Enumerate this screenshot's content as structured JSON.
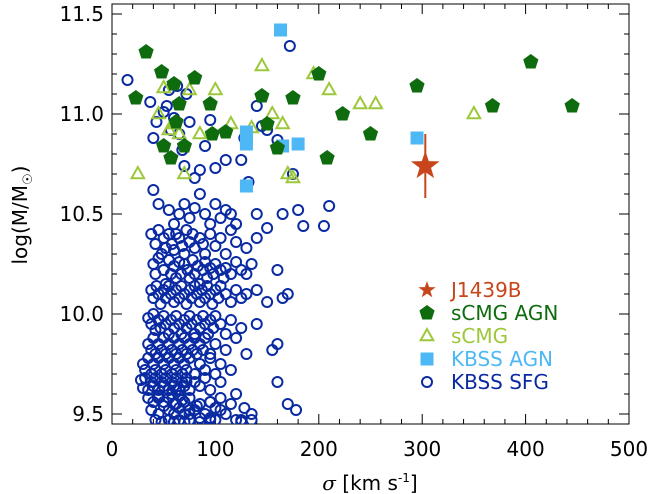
{
  "chart_data": {
    "type": "scatter",
    "xlabel": {
      "sym": "σ",
      "main": " [km s",
      "sup": "-1",
      "end": "]"
    },
    "ylabel": {
      "main": "log(M/M",
      "sub": "☉",
      "end": ")"
    },
    "xlim": [
      0,
      500
    ],
    "ylim": [
      9.45,
      11.55
    ],
    "xticks": [
      0,
      100,
      200,
      300,
      400,
      500
    ],
    "yticks": [
      9.5,
      10.0,
      10.5,
      11.0,
      11.5
    ],
    "xtick_labels": [
      "0",
      "100",
      "200",
      "300",
      "400",
      "500"
    ],
    "ytick_labels": [
      "9.5",
      "10.0",
      "10.5",
      "11.0",
      "11.5"
    ],
    "grid": false,
    "legend_position": "lower-right",
    "series": [
      {
        "name": "KBSS SFG",
        "marker": "open-circle",
        "color": "#0a2aa3",
        "x": [
          15,
          37,
          40,
          43,
          50,
          53,
          55,
          57,
          60,
          63,
          65,
          68,
          70,
          72,
          75,
          80,
          85,
          90,
          95,
          100,
          110,
          125,
          128,
          130,
          132,
          140,
          145,
          150,
          160,
          172,
          175,
          40,
          45,
          55,
          60,
          65,
          70,
          75,
          80,
          85,
          90,
          95,
          100,
          105,
          110,
          115,
          120,
          140,
          150,
          165,
          180,
          185,
          38,
          42,
          45,
          48,
          50,
          52,
          55,
          58,
          60,
          62,
          65,
          68,
          70,
          72,
          75,
          78,
          80,
          85,
          88,
          90,
          95,
          100,
          105,
          110,
          115,
          120,
          130,
          140,
          40,
          42,
          45,
          50,
          52,
          55,
          57,
          60,
          62,
          65,
          67,
          70,
          73,
          75,
          78,
          80,
          83,
          85,
          88,
          90,
          92,
          95,
          98,
          100,
          105,
          108,
          110,
          115,
          120,
          125,
          130,
          135,
          160,
          38,
          40,
          43,
          45,
          47,
          50,
          52,
          55,
          57,
          60,
          62,
          65,
          67,
          70,
          72,
          75,
          77,
          80,
          82,
          85,
          87,
          90,
          92,
          95,
          97,
          100,
          103,
          105,
          110,
          115,
          120,
          125,
          130,
          140,
          150,
          165,
          170,
          35,
          38,
          40,
          42,
          45,
          47,
          50,
          52,
          55,
          57,
          60,
          62,
          65,
          67,
          70,
          72,
          75,
          77,
          80,
          82,
          85,
          88,
          90,
          93,
          95,
          98,
          100,
          105,
          110,
          115,
          125,
          140,
          35,
          38,
          40,
          42,
          45,
          48,
          50,
          52,
          55,
          58,
          60,
          62,
          65,
          68,
          70,
          72,
          75,
          78,
          80,
          82,
          85,
          88,
          90,
          95,
          100,
          110,
          120,
          130,
          155,
          160,
          30,
          32,
          35,
          38,
          40,
          42,
          45,
          48,
          50,
          52,
          55,
          58,
          60,
          62,
          65,
          68,
          70,
          72,
          75,
          80,
          85,
          90,
          95,
          100,
          105,
          115,
          28,
          30,
          32,
          35,
          38,
          40,
          42,
          45,
          48,
          50,
          52,
          55,
          58,
          60,
          62,
          65,
          68,
          70,
          72,
          75,
          80,
          85,
          90,
          95,
          105,
          120,
          160,
          35,
          40,
          45,
          50,
          55,
          60,
          65,
          70,
          75,
          85,
          95,
          105,
          38,
          45,
          55,
          60,
          65,
          70,
          80,
          90,
          100,
          115,
          42,
          48,
          55,
          60,
          65,
          70,
          75,
          85,
          95,
          120,
          45,
          50,
          58,
          62,
          68,
          75,
          82,
          95,
          105,
          135,
          55,
          60,
          75,
          85,
          100,
          125,
          135,
          205,
          210,
          125,
          128,
          62,
          72,
          95,
          110,
          170,
          178
        ],
        "y": [
          11.17,
          11.06,
          10.88,
          10.96,
          11.01,
          11.04,
          11.12,
          10.92,
          10.98,
          11.14,
          10.9,
          10.82,
          10.74,
          11.1,
          10.96,
          10.68,
          10.72,
          10.84,
          10.97,
          10.73,
          10.77,
          10.77,
          10.88,
          10.9,
          10.66,
          11.04,
          10.94,
          10.92,
          10.87,
          11.34,
          10.7,
          10.62,
          10.55,
          10.52,
          10.45,
          10.5,
          10.55,
          10.48,
          10.53,
          10.6,
          10.5,
          10.45,
          10.55,
          10.48,
          10.52,
          10.5,
          10.45,
          10.5,
          10.43,
          10.5,
          10.52,
          10.44,
          10.4,
          10.35,
          10.42,
          10.3,
          10.38,
          10.33,
          10.4,
          10.35,
          10.32,
          10.4,
          10.38,
          10.34,
          10.3,
          10.42,
          10.36,
          10.4,
          10.33,
          10.38,
          10.35,
          10.3,
          10.4,
          10.34,
          10.38,
          10.3,
          10.42,
          10.36,
          10.33,
          10.38,
          10.25,
          10.2,
          10.28,
          10.22,
          10.15,
          10.27,
          10.2,
          10.24,
          10.18,
          10.26,
          10.2,
          10.25,
          10.22,
          10.18,
          10.27,
          10.2,
          10.24,
          10.15,
          10.22,
          10.26,
          10.18,
          10.23,
          10.2,
          10.25,
          10.22,
          10.18,
          10.23,
          10.2,
          10.26,
          10.22,
          10.2,
          10.25,
          10.22,
          10.12,
          10.08,
          10.14,
          10.1,
          10.05,
          10.12,
          10.08,
          10.14,
          10.1,
          10.06,
          10.12,
          10.08,
          10.14,
          10.1,
          10.05,
          10.12,
          10.08,
          10.14,
          10.1,
          10.06,
          10.12,
          10.08,
          10.14,
          10.1,
          10.05,
          10.12,
          10.08,
          10.14,
          10.1,
          10.06,
          10.12,
          10.08,
          10.1,
          10.12,
          10.06,
          10.08,
          10.1,
          9.98,
          9.95,
          10.0,
          9.92,
          9.97,
          9.93,
          9.99,
          9.95,
          9.9,
          9.97,
          9.93,
          9.99,
          9.95,
          9.9,
          9.97,
          9.93,
          9.99,
          9.95,
          9.9,
          9.97,
          9.93,
          9.99,
          9.95,
          9.9,
          9.97,
          9.93,
          9.99,
          9.95,
          9.9,
          9.97,
          9.93,
          9.95,
          9.85,
          9.82,
          9.88,
          9.8,
          9.85,
          9.82,
          9.88,
          9.8,
          9.85,
          9.82,
          9.88,
          9.8,
          9.85,
          9.82,
          9.88,
          9.8,
          9.85,
          9.82,
          9.88,
          9.8,
          9.85,
          9.82,
          9.88,
          9.8,
          9.85,
          9.82,
          9.88,
          9.8,
          9.82,
          9.85,
          9.75,
          9.72,
          9.78,
          9.7,
          9.75,
          9.72,
          9.78,
          9.7,
          9.75,
          9.72,
          9.78,
          9.7,
          9.75,
          9.72,
          9.78,
          9.7,
          9.75,
          9.72,
          9.78,
          9.7,
          9.75,
          9.72,
          9.78,
          9.7,
          9.75,
          9.72,
          9.67,
          9.63,
          9.68,
          9.62,
          9.66,
          9.64,
          9.68,
          9.62,
          9.66,
          9.64,
          9.68,
          9.62,
          9.66,
          9.64,
          9.68,
          9.62,
          9.66,
          9.64,
          9.68,
          9.62,
          9.66,
          9.64,
          9.68,
          9.62,
          9.66,
          9.6,
          9.66,
          9.58,
          9.56,
          9.59,
          9.56,
          9.58,
          9.55,
          9.59,
          9.56,
          9.58,
          9.55,
          9.56,
          9.58,
          9.52,
          9.5,
          9.52,
          9.5,
          9.53,
          9.5,
          9.52,
          9.5,
          9.53,
          9.55,
          9.47,
          9.46,
          9.47,
          9.46,
          9.47,
          9.46,
          9.47,
          9.46,
          9.47,
          9.47,
          9.58,
          9.54,
          9.6,
          9.55,
          9.57,
          9.52,
          9.54,
          9.56,
          9.52,
          9.5,
          9.47,
          9.46,
          9.5,
          9.48,
          9.47,
          9.46,
          9.47,
          10.44,
          10.54,
          9.47,
          9.53,
          9.62,
          9.66,
          9.48,
          9.5,
          9.55,
          9.52
        ]
      },
      {
        "name": "sCMG",
        "marker": "open-triangle",
        "color": "#9cc83a",
        "x": [
          25,
          45,
          50,
          55,
          60,
          65,
          70,
          75,
          85,
          100,
          115,
          135,
          145,
          155,
          165,
          170,
          175,
          195,
          210,
          240,
          255,
          350
        ],
        "y": [
          10.7,
          11.0,
          11.13,
          10.92,
          10.95,
          10.9,
          10.7,
          11.12,
          10.9,
          11.12,
          10.95,
          10.93,
          11.24,
          11.0,
          10.95,
          10.7,
          10.68,
          11.2,
          11.12,
          11.05,
          11.05,
          11.0
        ]
      },
      {
        "name": "KBSS AGN",
        "marker": "filled-square",
        "color": "#4db8f5",
        "x": [
          130,
          130,
          130,
          130,
          163,
          165,
          180,
          295
        ],
        "y": [
          10.64,
          10.85,
          10.88,
          10.91,
          11.42,
          10.84,
          10.85,
          10.88
        ]
      },
      {
        "name": "sCMG AGN",
        "marker": "filled-pentagon",
        "color": "#0e6b0e",
        "x": [
          23,
          33,
          48,
          50,
          57,
          60,
          62,
          65,
          70,
          80,
          95,
          97,
          110,
          145,
          150,
          160,
          175,
          200,
          208,
          223,
          250,
          295,
          368,
          405,
          445
        ],
        "y": [
          11.08,
          11.31,
          11.21,
          10.84,
          10.78,
          11.15,
          10.96,
          11.05,
          10.84,
          11.18,
          11.05,
          10.9,
          10.91,
          11.09,
          10.95,
          10.83,
          11.08,
          11.2,
          10.78,
          11.0,
          10.9,
          11.14,
          11.04,
          11.26,
          11.04
        ]
      },
      {
        "name": "J1439B",
        "marker": "star",
        "color": "#c8461b",
        "x": [
          303
        ],
        "y": [
          10.74
        ],
        "yerr_low": [
          10.58
        ],
        "yerr_high": [
          10.9
        ]
      }
    ],
    "legend": [
      {
        "label": "J1439B",
        "color": "#c8461b",
        "marker": "star"
      },
      {
        "label": "sCMG AGN",
        "color": "#0e6b0e",
        "marker": "filled-pentagon"
      },
      {
        "label": "sCMG",
        "color": "#9cc83a",
        "marker": "open-triangle"
      },
      {
        "label": "KBSS AGN",
        "color": "#4db8f5",
        "marker": "filled-square"
      },
      {
        "label": "KBSS SFG",
        "color": "#0a2aa3",
        "marker": "open-circle"
      }
    ]
  }
}
